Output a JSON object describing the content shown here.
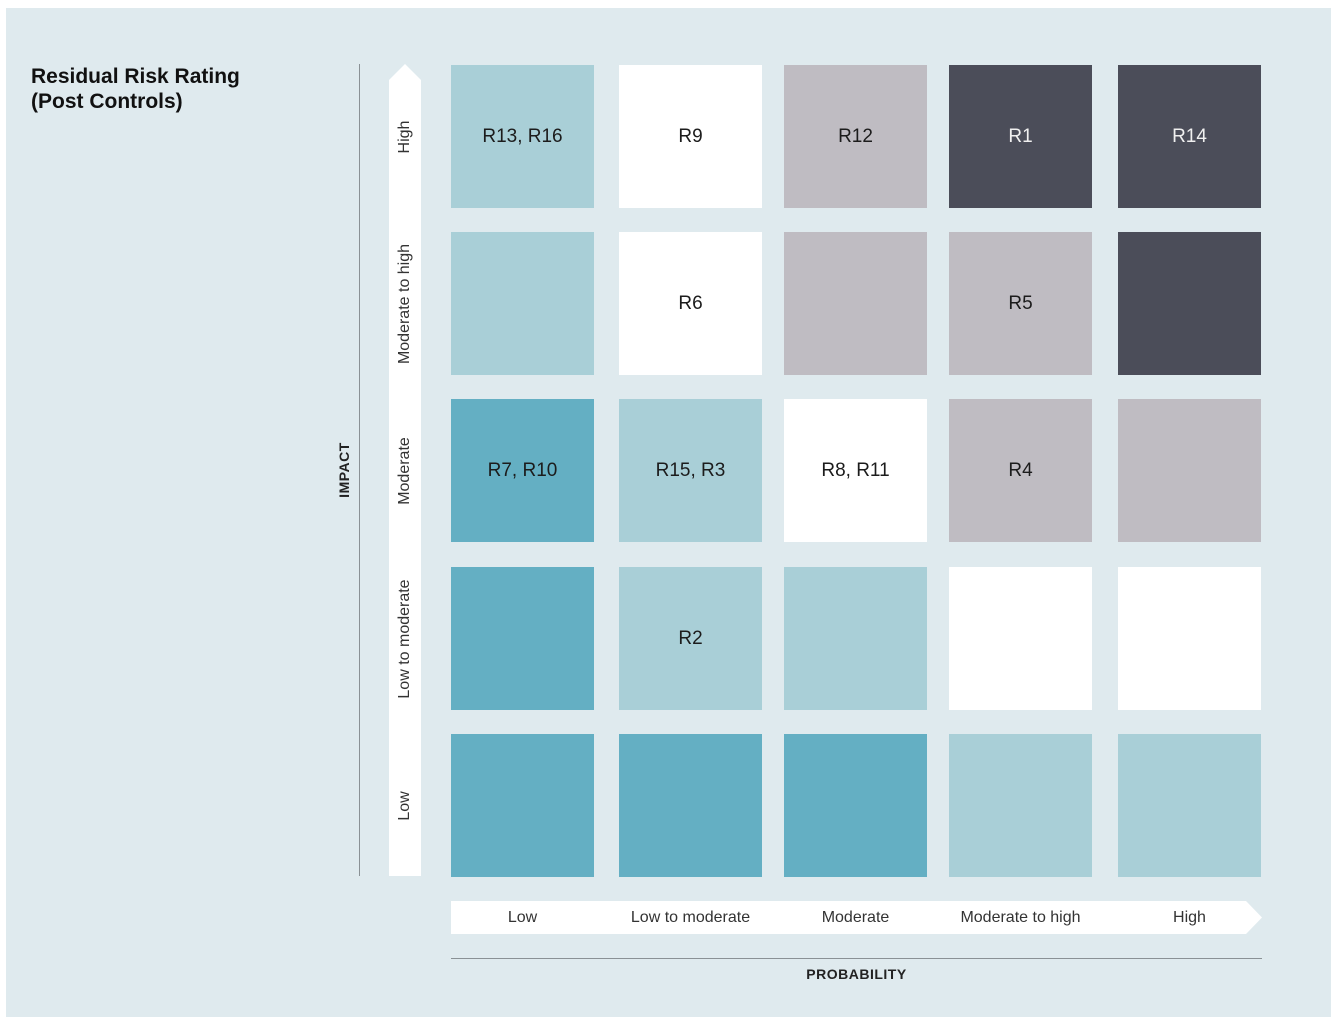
{
  "title_line1": "Residual Risk Rating",
  "title_line2": "(Post Controls)",
  "chart_data": {
    "type": "heatmap",
    "title": "Residual Risk Rating (Post Controls)",
    "xlabel": "PROBABILITY",
    "ylabel": "IMPACT",
    "x_categories": [
      "Low",
      "Low to moderate",
      "Moderate",
      "Moderate to high",
      "High"
    ],
    "y_categories": [
      "High",
      "Moderate to high",
      "Moderate",
      "Low to moderate",
      "Low"
    ],
    "colors": {
      "teal": "#64afc3",
      "light": "#a9cfd7",
      "white": "#ffffff",
      "grey": "#bfbcc2",
      "dark": "#4b4d59"
    },
    "cells": [
      [
        {
          "color": "light",
          "label": "R13, R16"
        },
        {
          "color": "white",
          "label": "R9"
        },
        {
          "color": "grey",
          "label": "R12"
        },
        {
          "color": "dark",
          "label": "R1"
        },
        {
          "color": "dark",
          "label": "R14"
        }
      ],
      [
        {
          "color": "light",
          "label": ""
        },
        {
          "color": "white",
          "label": "R6"
        },
        {
          "color": "grey",
          "label": ""
        },
        {
          "color": "grey",
          "label": "R5"
        },
        {
          "color": "dark",
          "label": ""
        }
      ],
      [
        {
          "color": "teal",
          "label": "R7, R10"
        },
        {
          "color": "light",
          "label": "R15, R3"
        },
        {
          "color": "white",
          "label": "R8, R11"
        },
        {
          "color": "grey",
          "label": "R4"
        },
        {
          "color": "grey",
          "label": ""
        }
      ],
      [
        {
          "color": "teal",
          "label": ""
        },
        {
          "color": "light",
          "label": "R2"
        },
        {
          "color": "light",
          "label": ""
        },
        {
          "color": "white",
          "label": ""
        },
        {
          "color": "white",
          "label": ""
        }
      ],
      [
        {
          "color": "teal",
          "label": ""
        },
        {
          "color": "teal",
          "label": ""
        },
        {
          "color": "teal",
          "label": ""
        },
        {
          "color": "light",
          "label": ""
        },
        {
          "color": "light",
          "label": ""
        }
      ]
    ]
  }
}
